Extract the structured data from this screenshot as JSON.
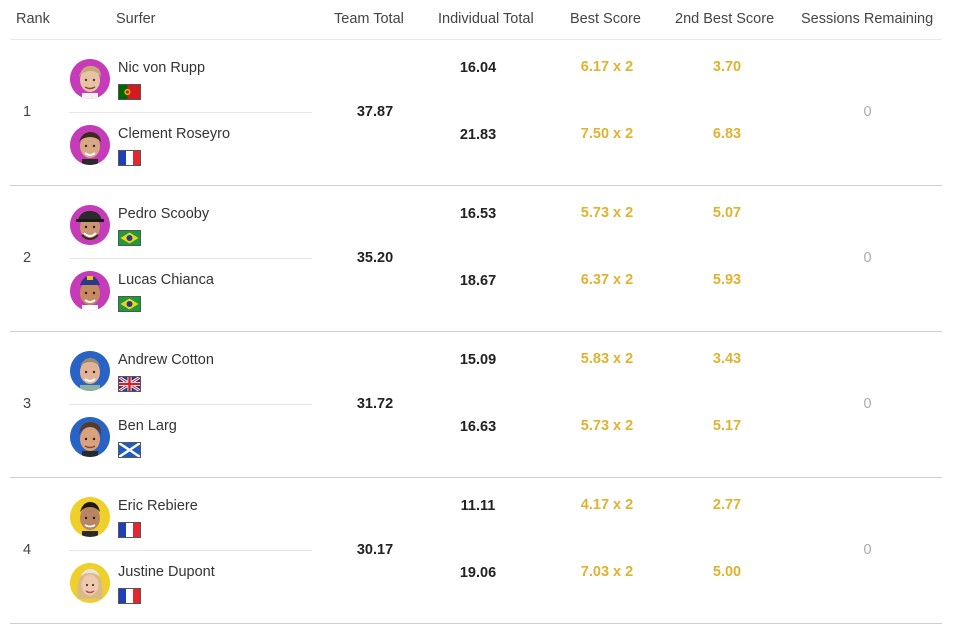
{
  "columns": {
    "rank": "Rank",
    "surfer": "Surfer",
    "team_total": "Team Total",
    "individual_total": "Individual Total",
    "best_score": "Best Score",
    "second_best_score": "2nd Best Score",
    "sessions_remaining": "Sessions Remaining"
  },
  "colors": {
    "score_gold": "#e1b22f",
    "avatar_magenta": "#c53bb8",
    "avatar_blue": "#2a63c6",
    "avatar_yellow": "#efd02a"
  },
  "teams": [
    {
      "rank": "1",
      "team_total": "37.87",
      "sessions_remaining": "0",
      "surfers": [
        {
          "name": "Nic von Rupp",
          "flag": "portugal-flag-icon",
          "avatar_color": "#c53bb8",
          "individual_total": "16.04",
          "best_score": "6.17 x 2",
          "second_best": "3.70"
        },
        {
          "name": "Clement Roseyro",
          "flag": "france-flag-icon",
          "avatar_color": "#c53bb8",
          "individual_total": "21.83",
          "best_score": "7.50 x 2",
          "second_best": "6.83"
        }
      ]
    },
    {
      "rank": "2",
      "team_total": "35.20",
      "sessions_remaining": "0",
      "surfers": [
        {
          "name": "Pedro Scooby",
          "flag": "brazil-flag-icon",
          "avatar_color": "#c53bb8",
          "individual_total": "16.53",
          "best_score": "5.73 x 2",
          "second_best": "5.07"
        },
        {
          "name": "Lucas Chianca",
          "flag": "brazil-flag-icon",
          "avatar_color": "#c53bb8",
          "individual_total": "18.67",
          "best_score": "6.37 x 2",
          "second_best": "5.93"
        }
      ]
    },
    {
      "rank": "3",
      "team_total": "31.72",
      "sessions_remaining": "0",
      "surfers": [
        {
          "name": "Andrew Cotton",
          "flag": "uk-flag-icon",
          "avatar_color": "#2a63c6",
          "individual_total": "15.09",
          "best_score": "5.83 x 2",
          "second_best": "3.43"
        },
        {
          "name": "Ben Larg",
          "flag": "scotland-flag-icon",
          "avatar_color": "#2a63c6",
          "individual_total": "16.63",
          "best_score": "5.73 x 2",
          "second_best": "5.17"
        }
      ]
    },
    {
      "rank": "4",
      "team_total": "30.17",
      "sessions_remaining": "0",
      "surfers": [
        {
          "name": "Eric Rebiere",
          "flag": "france-flag-icon",
          "avatar_color": "#efd02a",
          "individual_total": "11.11",
          "best_score": "4.17 x 2",
          "second_best": "2.77"
        },
        {
          "name": "Justine Dupont",
          "flag": "france-flag-icon",
          "avatar_color": "#efd02a",
          "individual_total": "19.06",
          "best_score": "7.03 x 2",
          "second_best": "5.00"
        }
      ]
    }
  ]
}
